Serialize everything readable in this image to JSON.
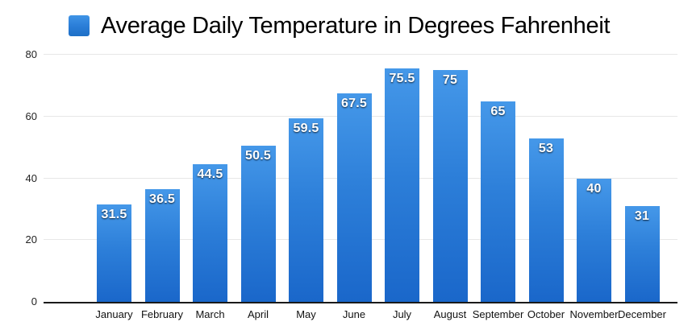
{
  "chart_data": {
    "type": "bar",
    "title": "Average Daily Temperature in Degrees Fahrenheit",
    "categories": [
      "January",
      "February",
      "March",
      "April",
      "May",
      "June",
      "July",
      "August",
      "September",
      "October",
      "November",
      "December"
    ],
    "values": [
      31.5,
      36.5,
      44.5,
      50.5,
      59.5,
      67.5,
      75.5,
      75,
      65,
      53,
      40,
      31
    ],
    "xlabel": "",
    "ylabel": "",
    "ylim": [
      0,
      80
    ],
    "yticks": [
      0,
      20,
      40,
      60,
      80
    ],
    "grid": "horizontal-light",
    "legend_position": "top-left-of-title",
    "data_labels": "white-inside-top-of-bar",
    "colors": {
      "bar_gradient_top": "#4598e9",
      "bar_gradient_bottom": "#1a67ca",
      "gridline": "#e7e7e7",
      "axis_line": "#1a1a1a",
      "value_label_text": "#ffffff",
      "axis_text": "#222222",
      "title_text": "#000000",
      "background": "#ffffff"
    }
  }
}
